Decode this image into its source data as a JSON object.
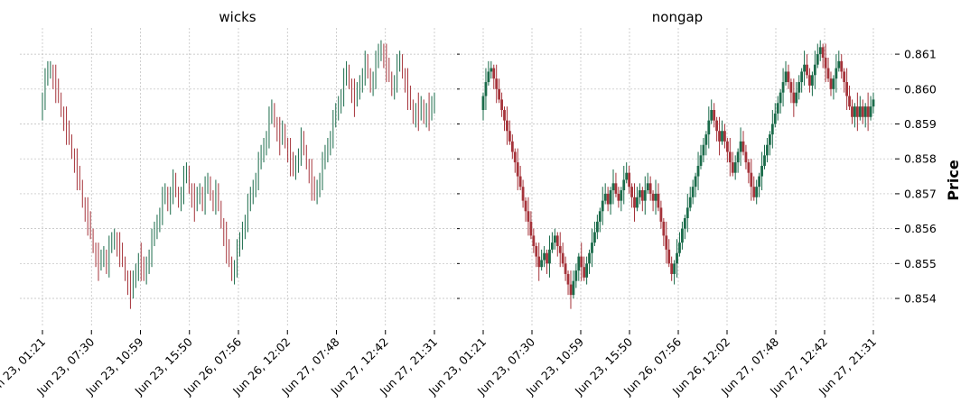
{
  "chart_data": {
    "type": "ohlc",
    "ylabel": "Price",
    "yticks": [
      "0.854",
      "0.855",
      "0.856",
      "0.857",
      "0.858",
      "0.859",
      "0.860",
      "0.861"
    ],
    "ylim": [
      0.8532,
      0.8617
    ],
    "xtick_labels": [
      "Jun 23, 01:21",
      "Jun 23, 07:30",
      "Jun 23, 10:59",
      "Jun 23, 15:50",
      "Jun 26, 07:56",
      "Jun 26, 12:02",
      "Jun 27, 07:48",
      "Jun 27, 12:42",
      "Jun 27, 21:31"
    ],
    "colors": {
      "up": "#1a6b4a",
      "down": "#a5333a"
    },
    "panels": [
      {
        "title": "wicks",
        "style": "wicks"
      },
      {
        "title": "nongap",
        "style": "nongap"
      }
    ],
    "close": [
      0.8598,
      0.8602,
      0.8605,
      0.8606,
      0.8603,
      0.86,
      0.8597,
      0.8594,
      0.8591,
      0.8588,
      0.8585,
      0.8582,
      0.8579,
      0.8575,
      0.8572,
      0.8568,
      0.8565,
      0.8562,
      0.8558,
      0.8555,
      0.8552,
      0.8549,
      0.8551,
      0.8553,
      0.855,
      0.8554,
      0.8556,
      0.8558,
      0.8555,
      0.8553,
      0.855,
      0.8547,
      0.8544,
      0.8541,
      0.8545,
      0.8548,
      0.8552,
      0.8549,
      0.8546,
      0.855,
      0.8553,
      0.8556,
      0.8559,
      0.8562,
      0.8565,
      0.8568,
      0.857,
      0.8567,
      0.8571,
      0.8573,
      0.857,
      0.8568,
      0.8571,
      0.8574,
      0.8576,
      0.8572,
      0.8569,
      0.8566,
      0.8569,
      0.8571,
      0.8568,
      0.8571,
      0.8573,
      0.857,
      0.8568,
      0.857,
      0.8566,
      0.8562,
      0.8558,
      0.8554,
      0.855,
      0.8547,
      0.855,
      0.8553,
      0.8556,
      0.856,
      0.8563,
      0.8566,
      0.8569,
      0.8572,
      0.8575,
      0.8578,
      0.8581,
      0.8584,
      0.8587,
      0.8591,
      0.8594,
      0.8591,
      0.8588,
      0.8585,
      0.8588,
      0.8585,
      0.8582,
      0.8579,
      0.8576,
      0.8579,
      0.8582,
      0.8585,
      0.8582,
      0.8579,
      0.8576,
      0.8572,
      0.8569,
      0.8572,
      0.8575,
      0.8578,
      0.8581,
      0.8584,
      0.8587,
      0.859,
      0.8593,
      0.8596,
      0.8599,
      0.8602,
      0.8605,
      0.8602,
      0.8599,
      0.8596,
      0.8599,
      0.8602,
      0.8605,
      0.8607,
      0.8604,
      0.8601,
      0.8604,
      0.8607,
      0.861,
      0.8612,
      0.8609,
      0.8606,
      0.8603,
      0.86,
      0.8603,
      0.8606,
      0.8608,
      0.8605,
      0.8602,
      0.8598,
      0.8595,
      0.8592,
      0.8595,
      0.8592,
      0.8595,
      0.8592,
      0.8595,
      0.8592,
      0.8595,
      0.8597
    ],
    "note_ohlc": "open = previous close (first open 0.8594); high/low estimated as max/min(open, close) plus a small wick of 0.0001 to 0.0004"
  }
}
